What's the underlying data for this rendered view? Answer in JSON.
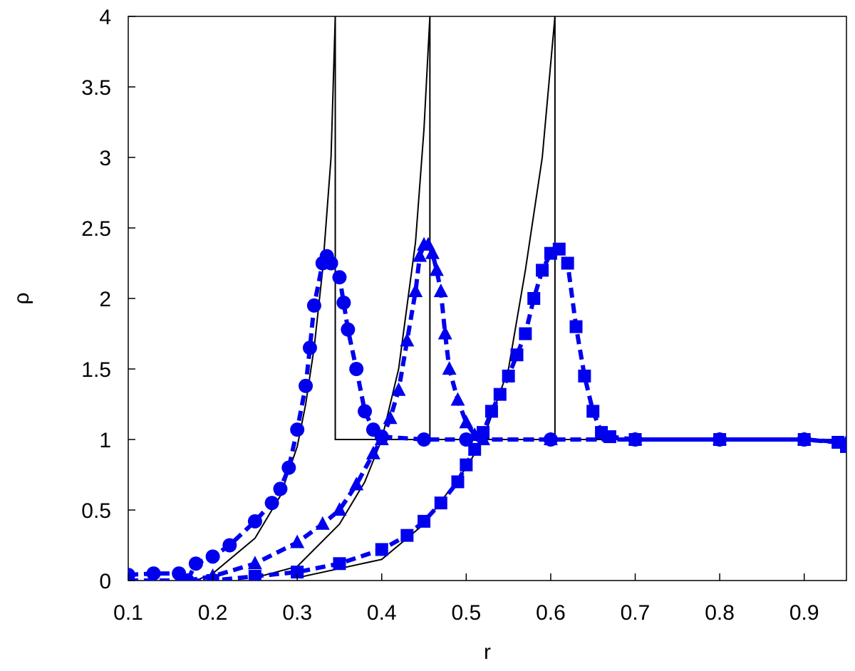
{
  "chart_data": {
    "type": "line",
    "xlabel": "r",
    "ylabel": "ρ",
    "xlim": [
      0.1,
      0.95
    ],
    "ylim": [
      0,
      4
    ],
    "xticks": [
      0.1,
      0.2,
      0.3,
      0.4,
      0.5,
      0.6,
      0.7,
      0.8,
      0.9
    ],
    "yticks": [
      0,
      0.5,
      1,
      1.5,
      2,
      2.5,
      3,
      3.5,
      4
    ],
    "series": [
      {
        "color": "#000000",
        "line": "solid",
        "marker": "none",
        "x": [
          0.18,
          0.2,
          0.25,
          0.28,
          0.3,
          0.31,
          0.32,
          0.33,
          0.34,
          0.345,
          0.345,
          0.95
        ],
        "values": [
          0.0,
          0.05,
          0.3,
          0.6,
          0.95,
          1.25,
          1.65,
          2.2,
          3.0,
          4.0,
          1.0,
          1.0
        ]
      },
      {
        "color": "#000000",
        "line": "solid",
        "marker": "none",
        "x": [
          0.25,
          0.3,
          0.35,
          0.38,
          0.4,
          0.42,
          0.44,
          0.45,
          0.457,
          0.457,
          0.95
        ],
        "values": [
          0.02,
          0.1,
          0.4,
          0.7,
          1.0,
          1.5,
          2.4,
          3.2,
          4.0,
          1.0,
          1.0
        ]
      },
      {
        "color": "#000000",
        "line": "solid",
        "marker": "none",
        "x": [
          0.3,
          0.4,
          0.45,
          0.5,
          0.52,
          0.55,
          0.57,
          0.59,
          0.605,
          0.605,
          0.95
        ],
        "values": [
          0.02,
          0.15,
          0.4,
          0.8,
          1.0,
          1.5,
          2.2,
          3.0,
          4.0,
          1.0,
          1.0
        ]
      },
      {
        "color": "#0000ee",
        "line": "dashed",
        "marker": "circle",
        "x": [
          0.1,
          0.13,
          0.16,
          0.17,
          0.18,
          0.2,
          0.22,
          0.25,
          0.27,
          0.28,
          0.29,
          0.3,
          0.31,
          0.315,
          0.32,
          0.33,
          0.335,
          0.34,
          0.35,
          0.355,
          0.36,
          0.37,
          0.38,
          0.39,
          0.4,
          0.45,
          0.5,
          0.6,
          0.7,
          0.8,
          0.9
        ],
        "values": [
          0.04,
          0.05,
          0.05,
          0.0,
          0.12,
          0.17,
          0.25,
          0.42,
          0.55,
          0.65,
          0.8,
          1.07,
          1.38,
          1.65,
          1.95,
          2.25,
          2.3,
          2.25,
          2.15,
          1.97,
          1.78,
          1.5,
          1.2,
          1.07,
          1.02,
          1.0,
          1.0,
          1.0,
          1.0,
          1.0,
          1.0
        ]
      },
      {
        "color": "#0000ee",
        "line": "dashed",
        "marker": "triangle",
        "x": [
          0.17,
          0.2,
          0.25,
          0.3,
          0.33,
          0.35,
          0.37,
          0.39,
          0.4,
          0.41,
          0.42,
          0.43,
          0.44,
          0.445,
          0.45,
          0.455,
          0.46,
          0.465,
          0.47,
          0.475,
          0.48,
          0.49,
          0.5,
          0.51,
          0.52,
          0.6,
          0.7,
          0.8,
          0.9,
          0.95
        ],
        "values": [
          0.0,
          0.03,
          0.12,
          0.27,
          0.4,
          0.5,
          0.68,
          0.9,
          1.0,
          1.15,
          1.35,
          1.7,
          2.05,
          2.3,
          2.38,
          2.38,
          2.32,
          2.2,
          2.05,
          1.75,
          1.5,
          1.28,
          1.12,
          1.03,
          1.0,
          1.0,
          1.0,
          1.0,
          1.0,
          0.98
        ]
      },
      {
        "color": "#0000ee",
        "line": "dashed",
        "marker": "square",
        "x": [
          0.1,
          0.2,
          0.25,
          0.3,
          0.35,
          0.4,
          0.43,
          0.45,
          0.47,
          0.49,
          0.5,
          0.51,
          0.52,
          0.53,
          0.54,
          0.55,
          0.56,
          0.57,
          0.58,
          0.59,
          0.6,
          0.61,
          0.62,
          0.63,
          0.64,
          0.65,
          0.66,
          0.67,
          0.7,
          0.8,
          0.9,
          0.94,
          0.95
        ],
        "values": [
          0.0,
          0.0,
          0.03,
          0.06,
          0.12,
          0.22,
          0.32,
          0.42,
          0.55,
          0.7,
          0.82,
          0.93,
          1.05,
          1.2,
          1.32,
          1.45,
          1.6,
          1.75,
          2.0,
          2.2,
          2.32,
          2.35,
          2.25,
          1.8,
          1.45,
          1.2,
          1.05,
          1.02,
          1.0,
          1.0,
          1.0,
          0.98,
          0.95
        ]
      }
    ]
  }
}
